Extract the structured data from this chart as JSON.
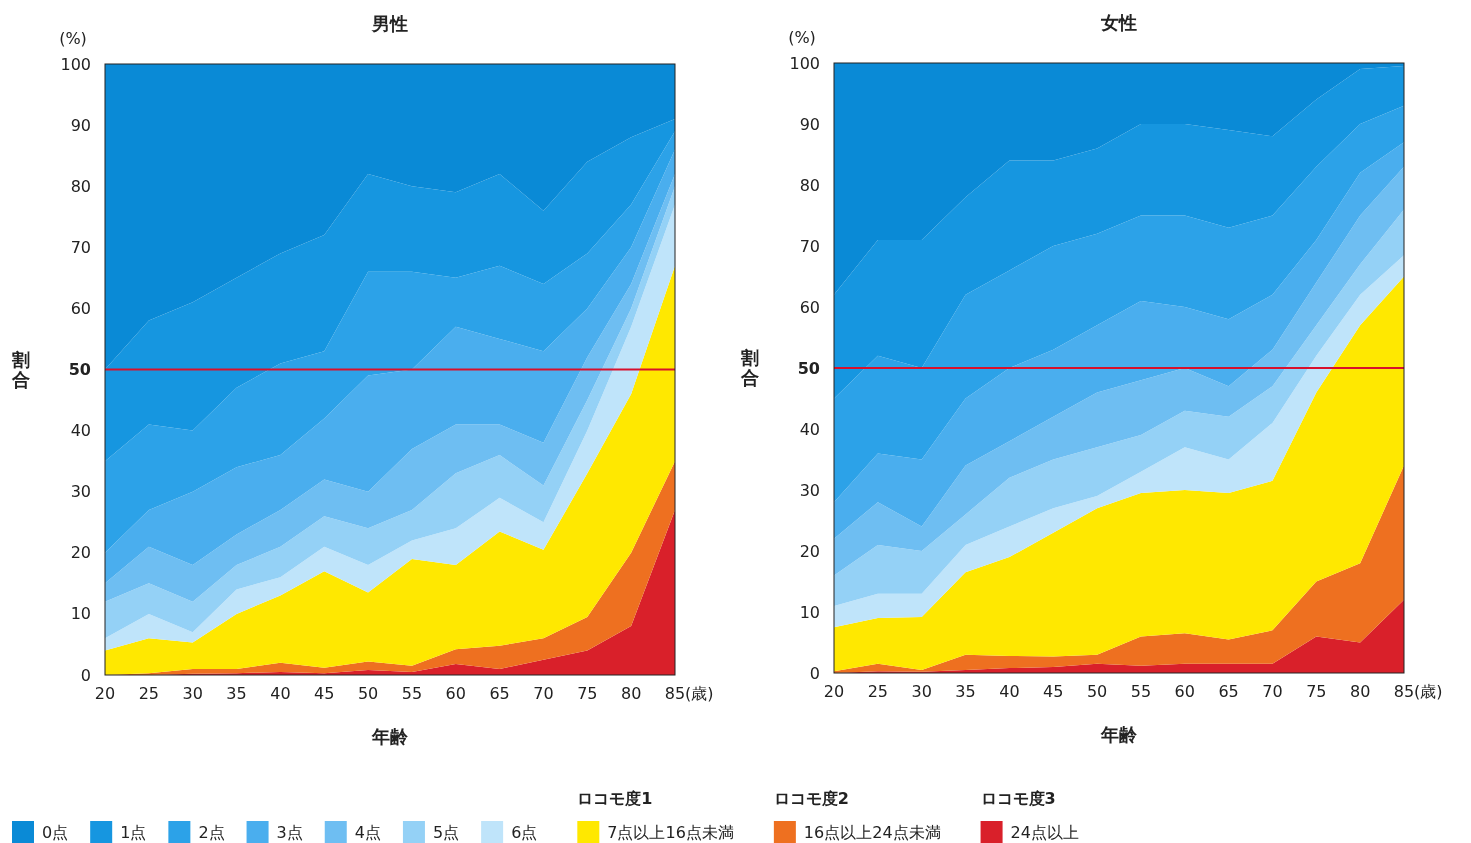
{
  "chart_data": [
    {
      "type": "area",
      "stacked": true,
      "title": "男性",
      "xlabel": "年齢",
      "ylabel": "割合",
      "annotations": [
        "(%)",
        "(歳)"
      ],
      "x": [
        20,
        25,
        30,
        35,
        40,
        45,
        50,
        55,
        60,
        65,
        70,
        75,
        80,
        85
      ],
      "xlim": [
        20,
        85
      ],
      "ylim": [
        0,
        100
      ],
      "xticks": [
        20,
        25,
        30,
        35,
        40,
        45,
        50,
        55,
        60,
        65,
        70,
        75,
        80,
        85
      ],
      "yticks": [
        0,
        10,
        20,
        30,
        40,
        50,
        60,
        70,
        80,
        90,
        100
      ],
      "grid": false,
      "legend": false,
      "ref_lines": [
        {
          "axis": "y",
          "value": 50,
          "color": "#d8102c"
        }
      ],
      "series": [
        {
          "color": "#d9202a",
          "values": [
            0,
            0,
            0.2,
            0.3,
            0.5,
            0.3,
            0.8,
            0.5,
            1.8,
            1,
            2.5,
            4,
            8,
            27
          ]
        },
        {
          "color": "#ee7020",
          "values": [
            0,
            0.3,
            0.8,
            0.7,
            1.5,
            0.9,
            1.4,
            1,
            2.4,
            3.8,
            3.5,
            5.5,
            12,
            8
          ]
        },
        {
          "color": "#ffe800",
          "values": [
            4,
            5.7,
            4.3,
            9,
            11,
            15.8,
            11.3,
            17.5,
            13.8,
            18.7,
            14.5,
            23.5,
            26,
            32
          ]
        },
        {
          "color": "#bfe4fa",
          "values": [
            2,
            4,
            1.7,
            4,
            3,
            4,
            4.5,
            3,
            6,
            5.5,
            4.5,
            7,
            11,
            10
          ]
        },
        {
          "color": "#94d1f6",
          "values": [
            6,
            5,
            5,
            4,
            5,
            5,
            6,
            5,
            9,
            7,
            6,
            5,
            3,
            3
          ]
        },
        {
          "color": "#6ebef2",
          "values": [
            3,
            6,
            6,
            5,
            6,
            6,
            6,
            10,
            8,
            5,
            7,
            7,
            4,
            2
          ]
        },
        {
          "color": "#4aaeee",
          "values": [
            5,
            6,
            12,
            11,
            9,
            10,
            19,
            13,
            16,
            14,
            15,
            8,
            6,
            4
          ]
        },
        {
          "color": "#2ca2e8",
          "values": [
            15,
            14,
            10,
            13,
            15,
            11,
            17,
            16,
            8,
            12,
            11,
            9,
            7,
            3
          ]
        },
        {
          "color": "#1696e0",
          "values": [
            15,
            17,
            21,
            18,
            18,
            19,
            16,
            14,
            14,
            15,
            12,
            15,
            11,
            2
          ]
        },
        {
          "color": "#0a8ad6",
          "values": [
            50,
            42,
            39,
            35,
            31,
            28,
            18,
            20,
            21,
            18,
            24,
            16,
            12,
            9
          ]
        }
      ]
    },
    {
      "type": "area",
      "stacked": true,
      "title": "女性",
      "xlabel": "年齢",
      "ylabel": "割合",
      "annotations": [
        "(%)",
        "(歳)",
        "ロコモ度1",
        "ロコモ度2",
        "ロコモ度3"
      ],
      "x": [
        20,
        25,
        30,
        35,
        40,
        45,
        50,
        55,
        60,
        65,
        70,
        75,
        80,
        85
      ],
      "xlim": [
        20,
        85
      ],
      "ylim": [
        0,
        100
      ],
      "xticks": [
        20,
        25,
        30,
        35,
        40,
        45,
        50,
        55,
        60,
        65,
        70,
        75,
        80,
        85
      ],
      "yticks": [
        0,
        10,
        20,
        30,
        40,
        50,
        60,
        70,
        80,
        90,
        100
      ],
      "grid": false,
      "legend": "bottom",
      "ref_lines": [
        {
          "axis": "y",
          "value": 50,
          "color": "#d8102c"
        }
      ],
      "series": [
        {
          "name": "24点以上",
          "color": "#d9202a",
          "values": [
            0,
            0.3,
            0.2,
            0.5,
            0.8,
            1,
            1.5,
            1.2,
            1.5,
            1.5,
            1.5,
            6,
            5,
            12
          ]
        },
        {
          "name": "16点以上24点未満",
          "color": "#ee7020",
          "values": [
            0.3,
            1.2,
            0.3,
            2.5,
            2,
            1.7,
            1.5,
            4.8,
            5,
            4,
            5.5,
            9,
            13,
            22
          ]
        },
        {
          "name": "7点以上16点未満",
          "color": "#ffe800",
          "values": [
            7.2,
            7.5,
            8.7,
            13.5,
            16.2,
            20.3,
            24,
            23.5,
            23.5,
            24,
            24.5,
            31,
            39,
            31
          ]
        },
        {
          "name": "6点",
          "color": "#bfe4fa",
          "values": [
            3.5,
            4,
            3.8,
            4.5,
            5,
            4,
            2,
            3.5,
            7,
            5.5,
            9.5,
            6,
            5,
            3.5
          ]
        },
        {
          "name": "5点",
          "color": "#94d1f6",
          "values": [
            5,
            8,
            7,
            5,
            8,
            8,
            8,
            6,
            6,
            7,
            6,
            5,
            5,
            7.5
          ]
        },
        {
          "name": "4点",
          "color": "#6ebef2",
          "values": [
            6,
            7,
            4,
            8,
            6,
            7,
            9,
            9,
            7,
            5,
            6,
            7,
            8,
            7
          ]
        },
        {
          "name": "3点",
          "color": "#4aaeee",
          "values": [
            6,
            8,
            11,
            11,
            12,
            11,
            11,
            13,
            10,
            11,
            9,
            7,
            7,
            4
          ]
        },
        {
          "name": "2点",
          "color": "#2ca2e8",
          "values": [
            17,
            16,
            15,
            17,
            16,
            17,
            15,
            14,
            15,
            15,
            13,
            12,
            8,
            6
          ]
        },
        {
          "name": "1点",
          "color": "#1696e0",
          "values": [
            17,
            19,
            21,
            16,
            18,
            14,
            14,
            15,
            15,
            16,
            13,
            11,
            9,
            6.5
          ]
        },
        {
          "name": "0点",
          "color": "#0a8ad6",
          "values": [
            38,
            29,
            29,
            22,
            16,
            16,
            14,
            10,
            10,
            11,
            12,
            6,
            1,
            0.5
          ]
        }
      ]
    }
  ]
}
